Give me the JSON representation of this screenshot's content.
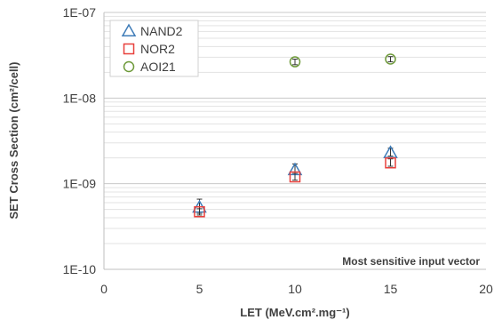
{
  "chart_data": {
    "type": "scatter",
    "xlabel": "LET (MeV.cm².mg⁻¹)",
    "ylabel": "SET Cross Section (cm²/cell)",
    "xlim": [
      0,
      20
    ],
    "ylim": [
      1e-10,
      1e-07
    ],
    "yscale": "log",
    "x_ticks": [
      "0",
      "5",
      "10",
      "15",
      "20"
    ],
    "y_ticks": [
      "1E-10",
      "1E-09",
      "1E-08",
      "1E-07"
    ],
    "grid": "horizontal major and minor",
    "legend_position": "top-left",
    "annotation": "Most sensitive input vector",
    "series": [
      {
        "name": "NAND2",
        "marker": "triangle",
        "color": "#3F7CB8",
        "points": [
          {
            "x": 5,
            "y": 5.3e-10,
            "err_low": 4.5e-10,
            "err_high": 6.6e-10
          },
          {
            "x": 10,
            "y": 1.45e-09,
            "err_low": 1.3e-09,
            "err_high": 1.7e-09
          },
          {
            "x": 15,
            "y": 2.3e-09,
            "err_low": 2.1e-09,
            "err_high": 2.6e-09
          }
        ]
      },
      {
        "name": "NOR2",
        "marker": "square",
        "color": "#E8403C",
        "points": [
          {
            "x": 5,
            "y": 4.7e-10,
            "err_low": 4.3e-10,
            "err_high": 5.1e-10
          },
          {
            "x": 10,
            "y": 1.2e-09,
            "err_low": 1.1e-09,
            "err_high": 1.35e-09
          },
          {
            "x": 15,
            "y": 1.75e-09,
            "err_low": 1.6e-09,
            "err_high": 1.95e-09
          }
        ]
      },
      {
        "name": "AOI21",
        "marker": "circle",
        "color": "#6E9A3A",
        "points": [
          {
            "x": 10,
            "y": 2.65e-08,
            "err_low": 2.45e-08,
            "err_high": 2.85e-08
          },
          {
            "x": 15,
            "y": 2.85e-08,
            "err_low": 2.65e-08,
            "err_high": 3.05e-08
          }
        ]
      }
    ]
  }
}
